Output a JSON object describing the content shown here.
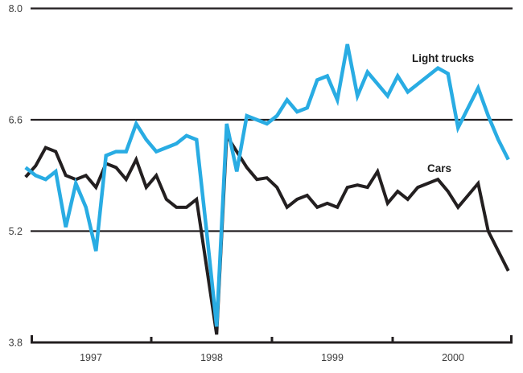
{
  "chart_data": {
    "type": "line",
    "title": "",
    "ylim": [
      3.8,
      8.0
    ],
    "y_ticks": [
      8.0,
      6.6,
      5.2,
      3.8
    ],
    "gridlines_at": [
      8.0,
      6.6,
      5.2
    ],
    "x_axis_value": 3.8,
    "x_tick_labels": [
      "1997",
      "1998",
      "1999",
      "2000"
    ],
    "legend_position": "inline-annotations",
    "grid": "horizontal-only",
    "months": [
      "1996-12",
      "1997-01",
      "1997-02",
      "1997-03",
      "1997-04",
      "1997-05",
      "1997-06",
      "1997-07",
      "1997-08",
      "1997-09",
      "1997-10",
      "1997-11",
      "1997-12",
      "1998-01",
      "1998-02",
      "1998-03",
      "1998-04",
      "1998-05",
      "1998-06",
      "1998-07",
      "1998-08",
      "1998-09",
      "1998-10",
      "1998-11",
      "1998-12",
      "1999-01",
      "1999-02",
      "1999-03",
      "1999-04",
      "1999-05",
      "1999-06",
      "1999-07",
      "1999-08",
      "1999-09",
      "1999-10",
      "1999-11",
      "1999-12",
      "2000-01",
      "2000-02",
      "2000-03",
      "2000-04",
      "2000-05",
      "2000-06",
      "2000-07",
      "2000-08",
      "2000-09",
      "2000-10",
      "2000-11",
      "2000-12"
    ],
    "series": [
      {
        "name": "Cars",
        "color": "#231f20",
        "stroke_width": 4,
        "values": [
          5.88,
          6.02,
          6.25,
          6.2,
          5.9,
          5.85,
          5.9,
          5.75,
          6.05,
          6.0,
          5.85,
          6.1,
          5.75,
          5.9,
          5.6,
          5.5,
          5.5,
          5.6,
          4.75,
          3.9,
          6.4,
          6.2,
          6.0,
          5.85,
          5.87,
          5.75,
          5.5,
          5.6,
          5.65,
          5.5,
          5.55,
          5.5,
          5.75,
          5.78,
          5.75,
          5.95,
          5.55,
          5.7,
          5.6,
          5.75,
          5.8,
          5.85,
          5.7,
          5.5,
          5.65,
          5.8,
          5.2,
          4.95,
          4.7
        ]
      },
      {
        "name": "Light trucks",
        "color": "#29ace3",
        "stroke_width": 4.5,
        "values": [
          6.0,
          5.9,
          5.85,
          5.95,
          5.25,
          5.8,
          5.5,
          4.95,
          6.15,
          6.2,
          6.2,
          6.55,
          6.35,
          6.2,
          6.25,
          6.3,
          6.4,
          6.35,
          5.2,
          4.0,
          6.55,
          5.95,
          6.65,
          6.6,
          6.55,
          6.65,
          6.85,
          6.7,
          6.75,
          7.1,
          7.15,
          6.85,
          7.55,
          6.9,
          7.2,
          7.05,
          6.9,
          7.15,
          6.95,
          7.05,
          7.15,
          7.25,
          7.18,
          6.5,
          6.75,
          7.0,
          6.65,
          6.35,
          6.1
        ]
      }
    ]
  },
  "annotations": {
    "light_trucks": "Light trucks",
    "cars": "Cars"
  },
  "axis_labels": {
    "y": [
      "8.0",
      "6.6",
      "5.2",
      "3.8"
    ],
    "x": [
      "1997",
      "1998",
      "1999",
      "2000"
    ]
  }
}
